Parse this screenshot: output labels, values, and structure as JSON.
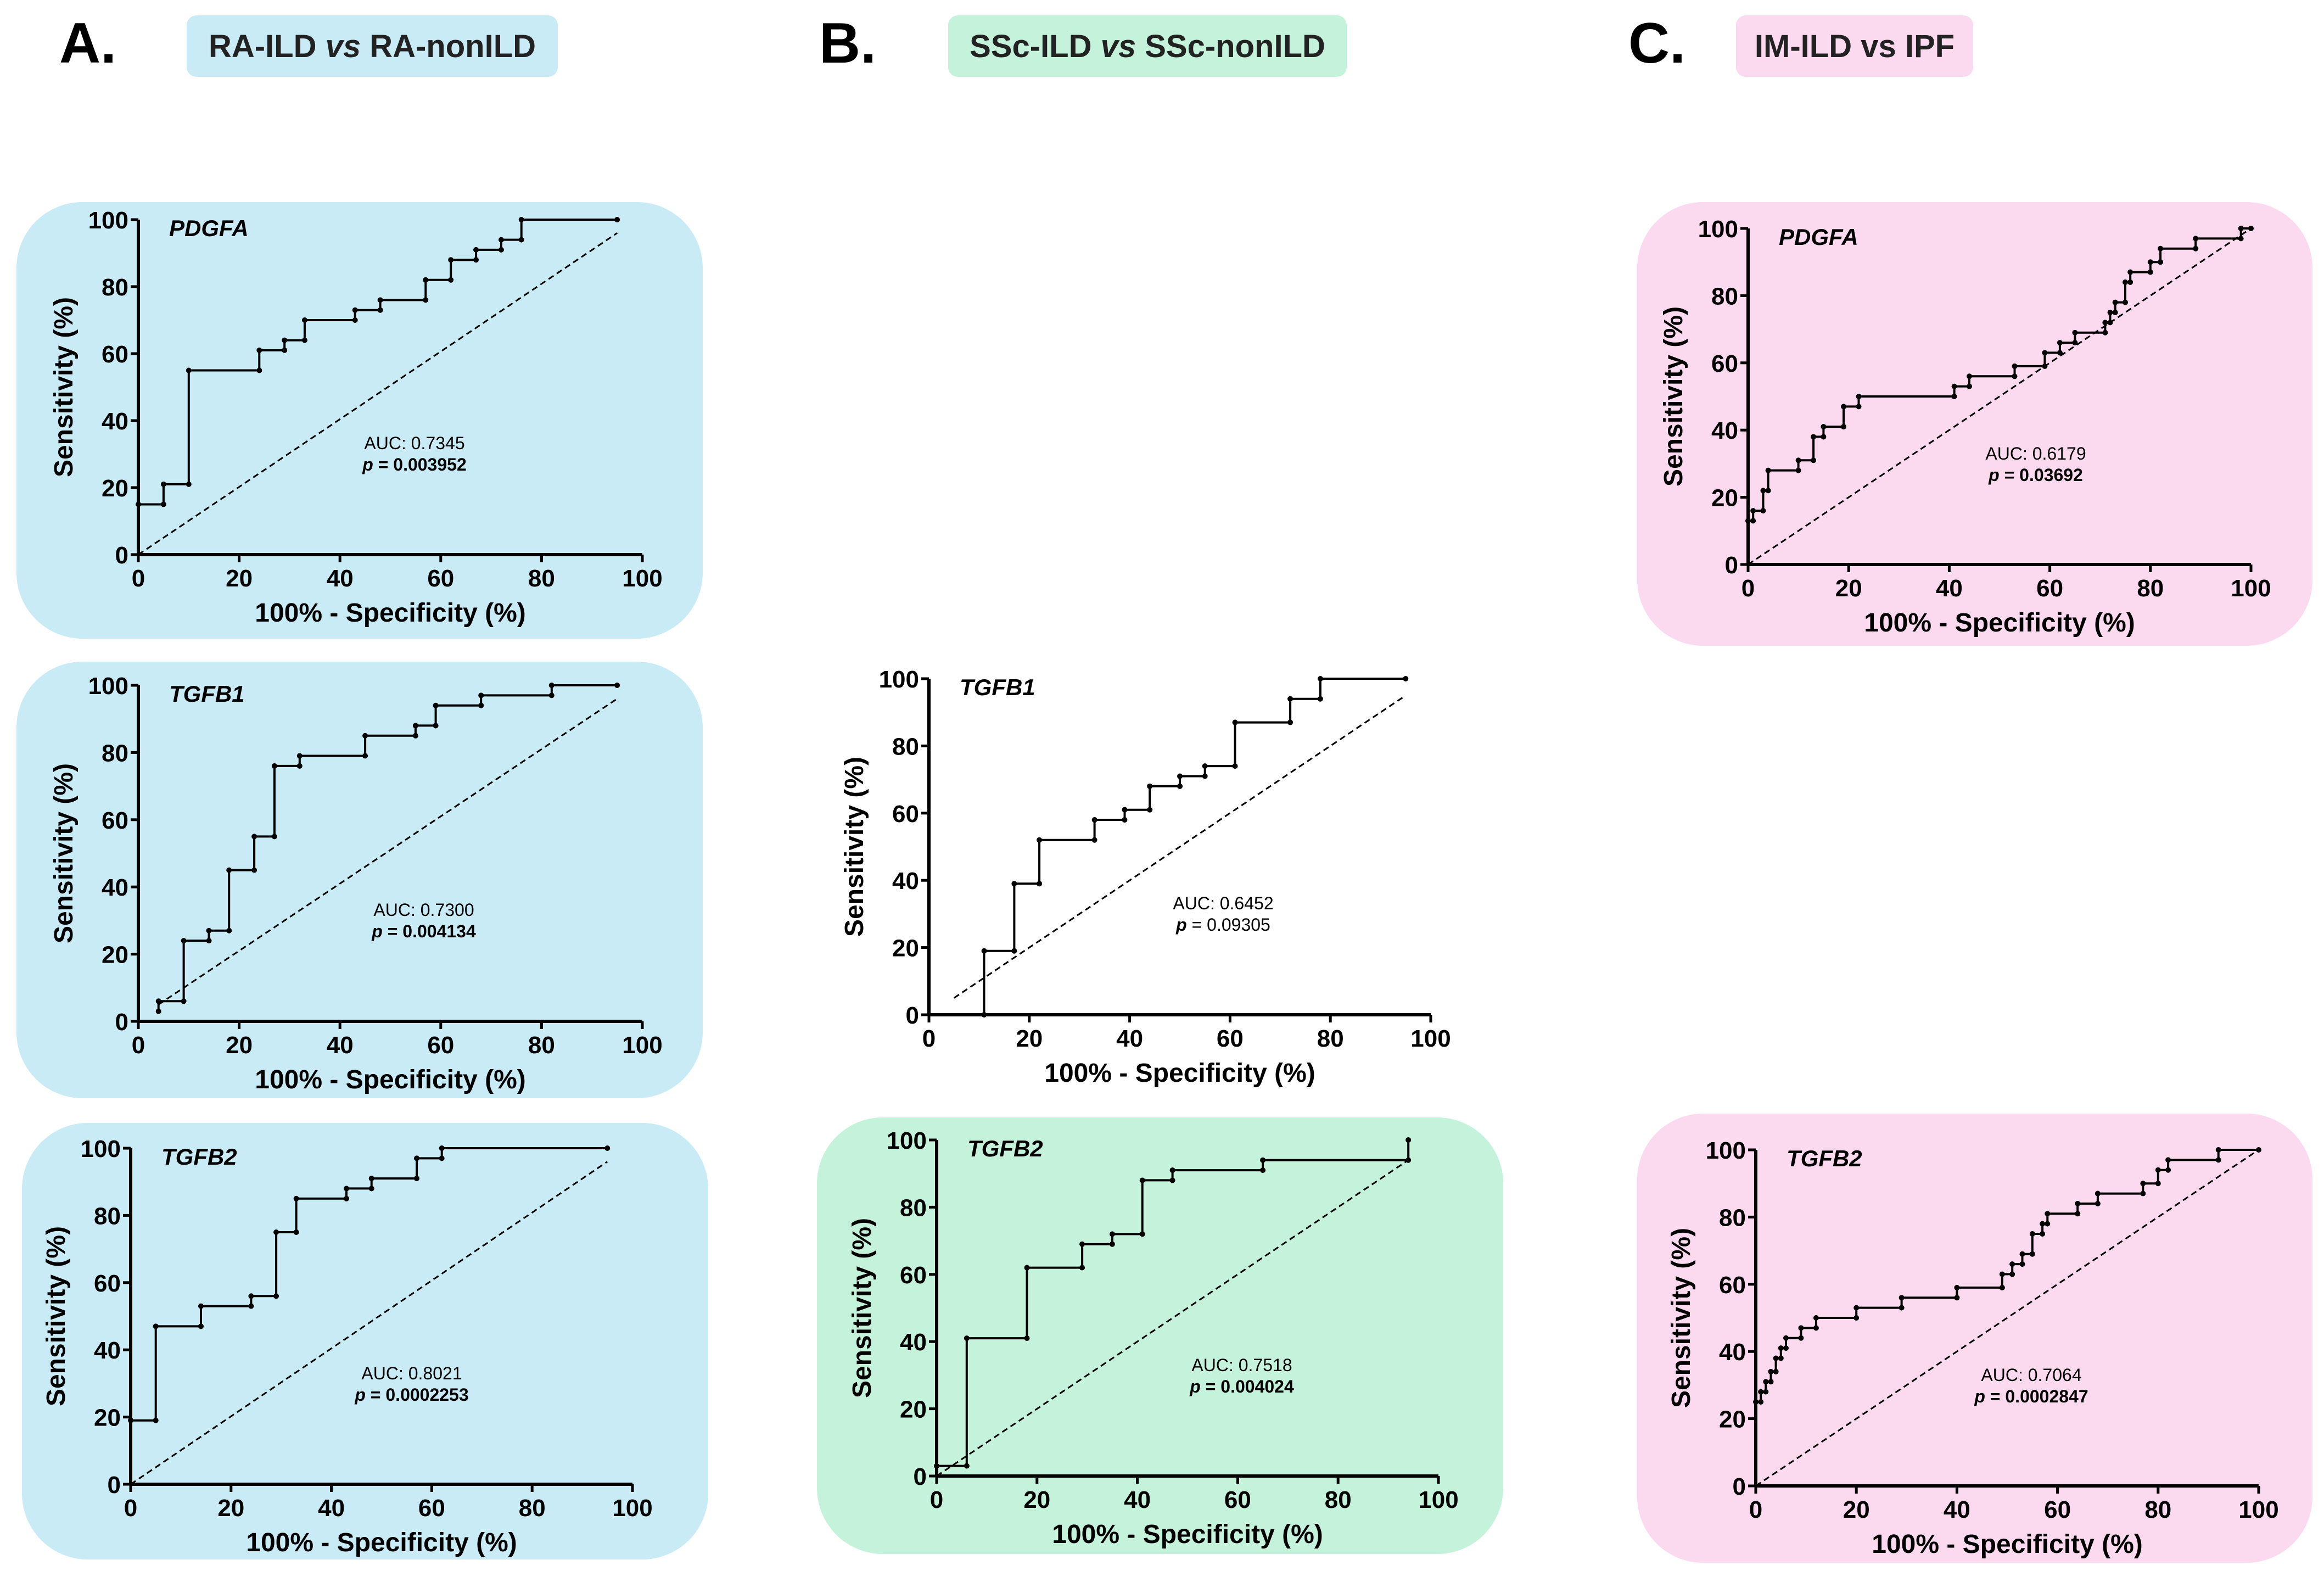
{
  "columns": [
    {
      "letter": "A.",
      "title_a": "RA-ILD ",
      "title_vs": "vs",
      "title_b": " RA-nonILD",
      "color": "#c8ebf6"
    },
    {
      "letter": "B.",
      "title_a": "SSc-ILD ",
      "title_vs": "vs",
      "title_b": " SSc-nonILD",
      "color": "#c4f2da"
    },
    {
      "letter": "C.",
      "title_a": "IM-ILD vs IPF",
      "title_vs": "",
      "title_b": "",
      "color": "#fbd9ee"
    }
  ],
  "chart_data": [
    {
      "id": "a1",
      "type": "line",
      "gene": "PDGFA",
      "bg": "#c8ebf6",
      "auc": "AUC: 0.7345",
      "p_label": "p",
      "p_value": " = 0.003952",
      "p_bold": true,
      "xlabel": "100% - Specificity (%)",
      "ylabel": "Sensitivity (%)",
      "xlim": [
        0,
        100
      ],
      "ylim": [
        0,
        100
      ],
      "xticks": [
        "0",
        "20",
        "40",
        "60",
        "80",
        "100"
      ],
      "yticks": [
        "0",
        "20",
        "40",
        "60",
        "80",
        "100"
      ],
      "roc": [
        [
          0,
          15
        ],
        [
          5,
          15
        ],
        [
          5,
          21
        ],
        [
          10,
          21
        ],
        [
          10,
          55
        ],
        [
          24,
          55
        ],
        [
          24,
          61
        ],
        [
          29,
          61
        ],
        [
          29,
          64
        ],
        [
          33,
          64
        ],
        [
          33,
          70
        ],
        [
          43,
          70
        ],
        [
          43,
          73
        ],
        [
          48,
          73
        ],
        [
          48,
          76
        ],
        [
          57,
          76
        ],
        [
          57,
          82
        ],
        [
          62,
          82
        ],
        [
          62,
          88
        ],
        [
          67,
          88
        ],
        [
          67,
          91
        ],
        [
          72,
          91
        ],
        [
          72,
          94
        ],
        [
          76,
          94
        ],
        [
          76,
          100
        ],
        [
          95,
          100
        ]
      ],
      "ref": [
        [
          0,
          0
        ],
        [
          95,
          96
        ]
      ]
    },
    {
      "id": "a2",
      "type": "line",
      "gene": "TGFB1",
      "bg": "#c8ebf6",
      "auc": "AUC: 0.7300",
      "p_label": "p",
      "p_value": " = 0.004134",
      "p_bold": true,
      "xlabel": "100% - Specificity (%)",
      "ylabel": "Sensitivity (%)",
      "xlim": [
        0,
        100
      ],
      "ylim": [
        0,
        100
      ],
      "xticks": [
        "0",
        "20",
        "40",
        "60",
        "80",
        "100"
      ],
      "yticks": [
        "0",
        "20",
        "40",
        "60",
        "80",
        "100"
      ],
      "roc": [
        [
          4,
          3
        ],
        [
          4,
          6
        ],
        [
          9,
          6
        ],
        [
          9,
          24
        ],
        [
          14,
          24
        ],
        [
          14,
          27
        ],
        [
          18,
          27
        ],
        [
          18,
          45
        ],
        [
          23,
          45
        ],
        [
          23,
          55
        ],
        [
          27,
          55
        ],
        [
          27,
          76
        ],
        [
          32,
          76
        ],
        [
          32,
          79
        ],
        [
          45,
          79
        ],
        [
          45,
          85
        ],
        [
          55,
          85
        ],
        [
          55,
          88
        ],
        [
          59,
          88
        ],
        [
          59,
          94
        ],
        [
          68,
          94
        ],
        [
          68,
          97
        ],
        [
          82,
          97
        ],
        [
          82,
          100
        ],
        [
          95,
          100
        ]
      ],
      "ref": [
        [
          4,
          5
        ],
        [
          95,
          96
        ]
      ]
    },
    {
      "id": "a3",
      "type": "line",
      "gene": "TGFB2",
      "bg": "#c8ebf6",
      "auc": "AUC: 0.8021",
      "p_label": "p",
      "p_value": " = 0.0002253",
      "p_bold": true,
      "xlabel": "100% - Specificity (%)",
      "ylabel": "Sensitivity (%)",
      "xlim": [
        0,
        100
      ],
      "ylim": [
        0,
        100
      ],
      "xticks": [
        "0",
        "20",
        "40",
        "60",
        "80",
        "100"
      ],
      "yticks": [
        "0",
        "20",
        "40",
        "60",
        "80",
        "100"
      ],
      "roc": [
        [
          0,
          19
        ],
        [
          5,
          19
        ],
        [
          5,
          47
        ],
        [
          14,
          47
        ],
        [
          14,
          53
        ],
        [
          24,
          53
        ],
        [
          24,
          56
        ],
        [
          29,
          56
        ],
        [
          29,
          75
        ],
        [
          33,
          75
        ],
        [
          33,
          85
        ],
        [
          43,
          85
        ],
        [
          43,
          88
        ],
        [
          48,
          88
        ],
        [
          48,
          91
        ],
        [
          57,
          91
        ],
        [
          57,
          97
        ],
        [
          62,
          97
        ],
        [
          62,
          100
        ],
        [
          95,
          100
        ]
      ],
      "ref": [
        [
          0,
          0
        ],
        [
          95,
          96
        ]
      ]
    },
    {
      "id": "b1",
      "type": "line",
      "gene": "TGFB1",
      "bg": "none",
      "auc": "AUC: 0.6452",
      "p_label": "p",
      "p_value": " = 0.09305",
      "p_bold": false,
      "xlabel": "100% - Specificity (%)",
      "ylabel": "Sensitivity (%)",
      "xlim": [
        0,
        100
      ],
      "ylim": [
        0,
        100
      ],
      "xticks": [
        "0",
        "20",
        "40",
        "60",
        "80",
        "100"
      ],
      "yticks": [
        "0",
        "20",
        "40",
        "60",
        "80",
        "100"
      ],
      "roc": [
        [
          11,
          0
        ],
        [
          11,
          19
        ],
        [
          17,
          19
        ],
        [
          17,
          39
        ],
        [
          22,
          39
        ],
        [
          22,
          52
        ],
        [
          33,
          52
        ],
        [
          33,
          58
        ],
        [
          39,
          58
        ],
        [
          39,
          61
        ],
        [
          44,
          61
        ],
        [
          44,
          68
        ],
        [
          50,
          68
        ],
        [
          50,
          71
        ],
        [
          55,
          71
        ],
        [
          55,
          74
        ],
        [
          61,
          74
        ],
        [
          61,
          87
        ],
        [
          72,
          87
        ],
        [
          72,
          94
        ],
        [
          78,
          94
        ],
        [
          78,
          100
        ],
        [
          95,
          100
        ]
      ],
      "ref": [
        [
          5,
          5
        ],
        [
          95,
          95
        ]
      ]
    },
    {
      "id": "b2",
      "type": "line",
      "gene": "TGFB2",
      "bg": "#c4f2da",
      "auc": "AUC: 0.7518",
      "p_label": "p",
      "p_value": " = 0.004024",
      "p_bold": true,
      "xlabel": "100% - Specificity (%)",
      "ylabel": "Sensitivity (%)",
      "xlim": [
        0,
        100
      ],
      "ylim": [
        0,
        100
      ],
      "xticks": [
        "0",
        "20",
        "40",
        "60",
        "80",
        "100"
      ],
      "yticks": [
        "0",
        "20",
        "40",
        "60",
        "80",
        "100"
      ],
      "roc": [
        [
          0,
          3
        ],
        [
          6,
          3
        ],
        [
          6,
          41
        ],
        [
          18,
          41
        ],
        [
          18,
          62
        ],
        [
          29,
          62
        ],
        [
          29,
          69
        ],
        [
          35,
          69
        ],
        [
          35,
          72
        ],
        [
          41,
          72
        ],
        [
          41,
          88
        ],
        [
          47,
          88
        ],
        [
          47,
          91
        ],
        [
          65,
          91
        ],
        [
          65,
          94
        ],
        [
          94,
          94
        ],
        [
          94,
          100
        ]
      ],
      "ref": [
        [
          0,
          0
        ],
        [
          94,
          94
        ]
      ]
    },
    {
      "id": "c1",
      "type": "line",
      "gene": "PDGFA",
      "bg": "#fbd9ee",
      "auc": "AUC: 0.6179",
      "p_label": "p",
      "p_value": " = 0.03692",
      "p_bold": true,
      "xlabel": "100% - Specificity (%)",
      "ylabel": "Sensitivity (%)",
      "xlim": [
        0,
        100
      ],
      "ylim": [
        0,
        100
      ],
      "xticks": [
        "0",
        "20",
        "40",
        "60",
        "80",
        "100"
      ],
      "yticks": [
        "0",
        "20",
        "40",
        "60",
        "80",
        "100"
      ],
      "roc": [
        [
          0,
          13
        ],
        [
          1,
          13
        ],
        [
          1,
          16
        ],
        [
          3,
          16
        ],
        [
          3,
          22
        ],
        [
          4,
          22
        ],
        [
          4,
          28
        ],
        [
          10,
          28
        ],
        [
          10,
          31
        ],
        [
          13,
          31
        ],
        [
          13,
          38
        ],
        [
          15,
          38
        ],
        [
          15,
          41
        ],
        [
          19,
          41
        ],
        [
          19,
          47
        ],
        [
          22,
          47
        ],
        [
          22,
          50
        ],
        [
          41,
          50
        ],
        [
          41,
          53
        ],
        [
          44,
          53
        ],
        [
          44,
          56
        ],
        [
          53,
          56
        ],
        [
          53,
          59
        ],
        [
          59,
          59
        ],
        [
          59,
          63
        ],
        [
          62,
          63
        ],
        [
          62,
          66
        ],
        [
          65,
          66
        ],
        [
          65,
          69
        ],
        [
          71,
          69
        ],
        [
          71,
          72
        ],
        [
          72,
          72
        ],
        [
          72,
          75
        ],
        [
          73,
          75
        ],
        [
          73,
          78
        ],
        [
          75,
          78
        ],
        [
          75,
          84
        ],
        [
          76,
          84
        ],
        [
          76,
          87
        ],
        [
          80,
          87
        ],
        [
          80,
          90
        ],
        [
          82,
          90
        ],
        [
          82,
          94
        ],
        [
          89,
          94
        ],
        [
          89,
          97
        ],
        [
          98,
          97
        ],
        [
          98,
          100
        ],
        [
          100,
          100
        ]
      ],
      "ref": [
        [
          0,
          0
        ],
        [
          100,
          100
        ]
      ]
    },
    {
      "id": "c2",
      "type": "line",
      "gene": "TGFB2",
      "bg": "#fbd9ee",
      "auc": "AUC: 0.7064",
      "p_label": "p",
      "p_value": " = 0.0002847",
      "p_bold": true,
      "xlabel": "100% - Specificity (%)",
      "ylabel": "Sensitivity (%)",
      "xlim": [
        0,
        100
      ],
      "ylim": [
        0,
        100
      ],
      "xticks": [
        "0",
        "20",
        "40",
        "60",
        "80",
        "100"
      ],
      "yticks": [
        "0",
        "20",
        "40",
        "60",
        "80",
        "100"
      ],
      "roc": [
        [
          0,
          25
        ],
        [
          1,
          25
        ],
        [
          1,
          28
        ],
        [
          2,
          28
        ],
        [
          2,
          31
        ],
        [
          3,
          31
        ],
        [
          3,
          34
        ],
        [
          4,
          34
        ],
        [
          4,
          38
        ],
        [
          5,
          38
        ],
        [
          5,
          41
        ],
        [
          6,
          41
        ],
        [
          6,
          44
        ],
        [
          9,
          44
        ],
        [
          9,
          47
        ],
        [
          12,
          47
        ],
        [
          12,
          50
        ],
        [
          20,
          50
        ],
        [
          20,
          53
        ],
        [
          29,
          53
        ],
        [
          29,
          56
        ],
        [
          40,
          56
        ],
        [
          40,
          59
        ],
        [
          49,
          59
        ],
        [
          49,
          63
        ],
        [
          51,
          63
        ],
        [
          51,
          66
        ],
        [
          53,
          66
        ],
        [
          53,
          69
        ],
        [
          55,
          69
        ],
        [
          55,
          75
        ],
        [
          57,
          75
        ],
        [
          57,
          78
        ],
        [
          58,
          78
        ],
        [
          58,
          81
        ],
        [
          64,
          81
        ],
        [
          64,
          84
        ],
        [
          68,
          84
        ],
        [
          68,
          87
        ],
        [
          77,
          87
        ],
        [
          77,
          90
        ],
        [
          80,
          90
        ],
        [
          80,
          94
        ],
        [
          82,
          94
        ],
        [
          82,
          97
        ],
        [
          92,
          97
        ],
        [
          92,
          100
        ],
        [
          100,
          100
        ]
      ],
      "ref": [
        [
          0,
          0
        ],
        [
          100,
          100
        ]
      ]
    }
  ]
}
